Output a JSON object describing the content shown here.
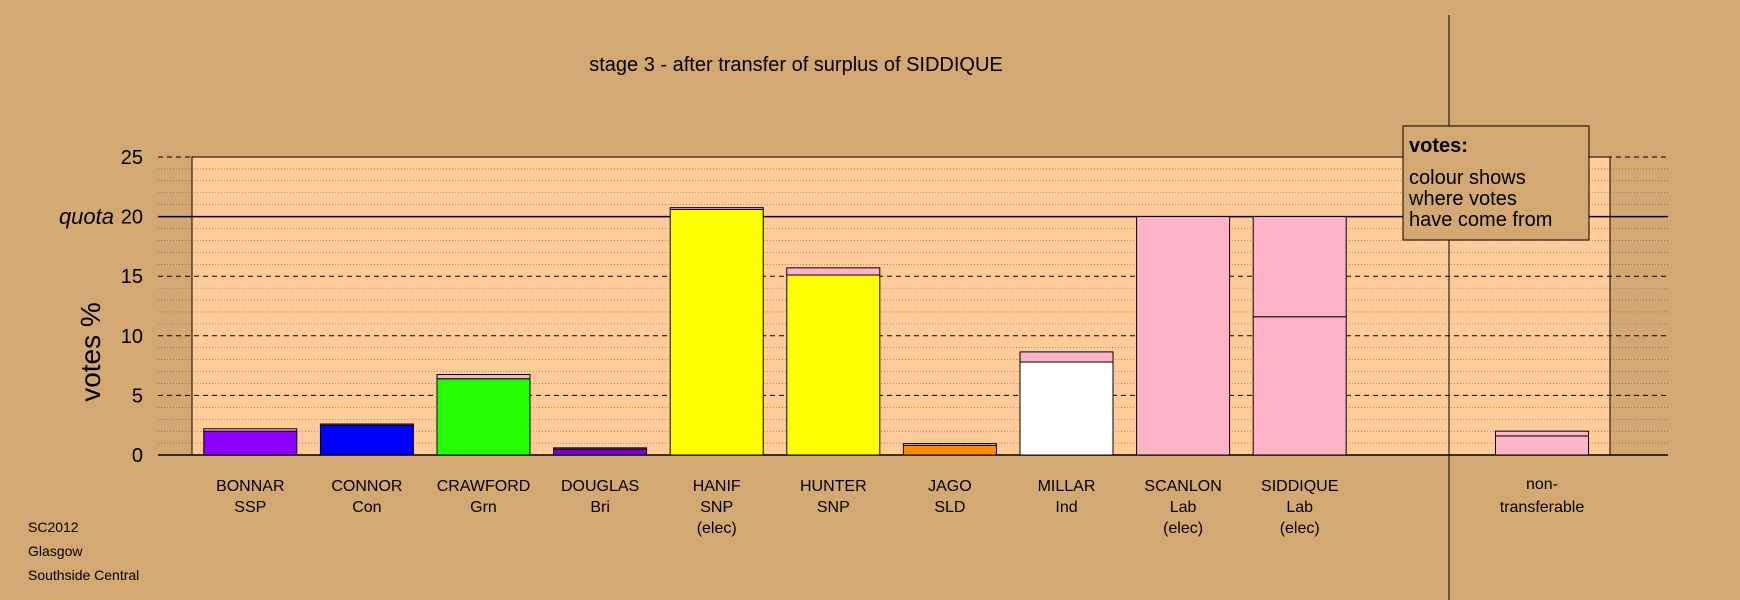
{
  "chart_data": {
    "type": "bar",
    "stacked": true,
    "title": "stage 3 - after transfer of surplus of SIDDIQUE",
    "ylabel": "votes %",
    "quota_label": "quota",
    "quota": 20,
    "ylim": [
      0,
      25
    ],
    "yticks": [
      0,
      5,
      10,
      15,
      20,
      25
    ],
    "grid": "dashed horizontal",
    "candidates": [
      {
        "name": "BONNAR",
        "party": "SSP",
        "note": "",
        "segments": [
          {
            "value": 2.0,
            "color": "#8B00FF"
          },
          {
            "value": 0.2,
            "color": "#FFB3C6"
          }
        ]
      },
      {
        "name": "CONNOR",
        "party": "Con",
        "note": "",
        "segments": [
          {
            "value": 2.5,
            "color": "#0000FF"
          },
          {
            "value": 0.1,
            "color": "#FFB3C6"
          }
        ]
      },
      {
        "name": "CRAWFORD",
        "party": "Grn",
        "note": "",
        "segments": [
          {
            "value": 6.4,
            "color": "#22FF00"
          },
          {
            "value": 0.35,
            "color": "#FFB3C6"
          }
        ]
      },
      {
        "name": "DOUGLAS",
        "party": "Bri",
        "note": "",
        "segments": [
          {
            "value": 0.5,
            "color": "#7A00CC"
          },
          {
            "value": 0.1,
            "color": "#FFB3C6"
          }
        ]
      },
      {
        "name": "HANIF",
        "party": "SNP",
        "note": "(elec)",
        "segments": [
          {
            "value": 20.6,
            "color": "#FFFF00"
          },
          {
            "value": 0.15,
            "color": "#FFB3C6"
          }
        ]
      },
      {
        "name": "HUNTER",
        "party": "SNP",
        "note": "",
        "segments": [
          {
            "value": 15.1,
            "color": "#FFFF00"
          },
          {
            "value": 0.6,
            "color": "#FFB3C6"
          }
        ]
      },
      {
        "name": "JAGO",
        "party": "SLD",
        "note": "",
        "segments": [
          {
            "value": 0.8,
            "color": "#FF8C00"
          },
          {
            "value": 0.15,
            "color": "#FFB3C6"
          }
        ]
      },
      {
        "name": "MILLAR",
        "party": "Ind",
        "note": "",
        "segments": [
          {
            "value": 7.8,
            "color": "#FFFFFF"
          },
          {
            "value": 0.85,
            "color": "#FFB3C6"
          }
        ]
      },
      {
        "name": "SCANLON",
        "party": "Lab",
        "note": "(elec)",
        "segments": [
          {
            "value": 20.0,
            "color": "#FFB3C6"
          }
        ]
      },
      {
        "name": "SIDDIQUE",
        "party": "Lab",
        "note": "(elec)",
        "segments": [
          {
            "value": 11.6,
            "color": "#FFB3C6"
          },
          {
            "value": 8.4,
            "color": "#FFB3C6"
          }
        ]
      }
    ],
    "nontransferable": {
      "line1": "non-",
      "line2": "transferable",
      "segments": [
        {
          "value": 1.6,
          "color": "#FFB3C6"
        },
        {
          "value": 0.4,
          "color": "#FFB3C6"
        }
      ]
    },
    "legend": {
      "title": "votes:",
      "lines": [
        "colour shows",
        "where votes",
        "have come from"
      ],
      "placement": "top-right"
    },
    "footer": [
      "SC2012",
      "Glasgow",
      "Southside Central"
    ],
    "colors": {
      "background": "#D4A873",
      "plot_area": "#FFCC99"
    }
  }
}
